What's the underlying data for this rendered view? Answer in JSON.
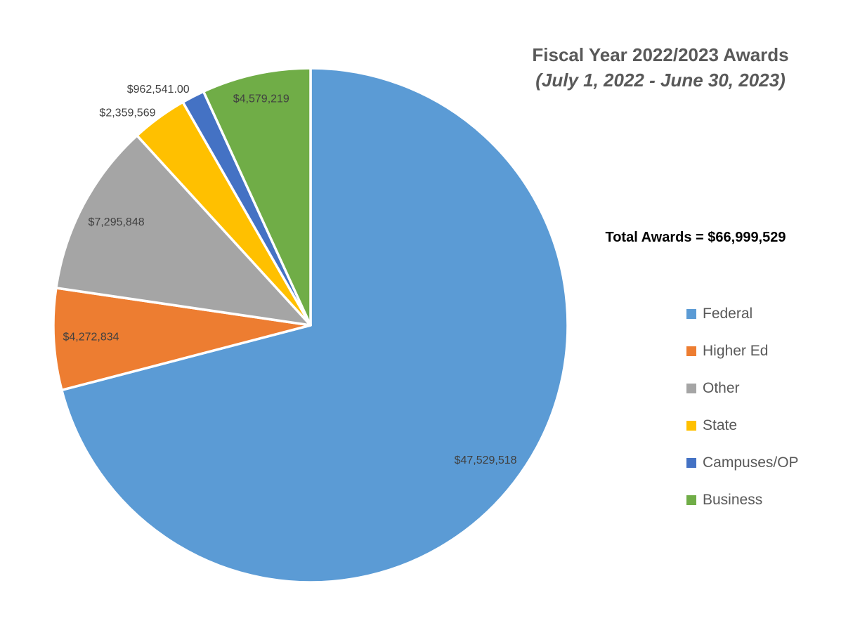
{
  "header": {
    "title": "Fiscal Year 2022/2023 Awards",
    "subtitle": "(July 1, 2022 - June 30, 2023)"
  },
  "summary": {
    "total_text": "Total Awards = $66,999,529"
  },
  "chart_data": {
    "type": "pie",
    "title": "Fiscal Year 2022/2023 Awards",
    "subtitle": "(July 1, 2022 - June 30, 2023)",
    "total_value": 66999529,
    "total_label": "Total Awards = $66,999,529",
    "start_angle_deg": 0,
    "direction": "clockwise",
    "legend_position": "right",
    "slices": [
      {
        "label": "Federal",
        "value": 47529518,
        "data_label": "$47,529,518",
        "color": "#5B9BD5",
        "label_placement": "inside"
      },
      {
        "label": "Higher Ed",
        "value": 4272834,
        "data_label": "$4,272,834",
        "color": "#ED7D31",
        "label_placement": "inside"
      },
      {
        "label": "Other",
        "value": 7295848,
        "data_label": "$7,295,848",
        "color": "#A5A5A5",
        "label_placement": "inside"
      },
      {
        "label": "State",
        "value": 2359569,
        "data_label": "$2,359,569",
        "color": "#FFC000",
        "label_placement": "outside"
      },
      {
        "label": "Campuses/OP",
        "value": 962541,
        "data_label": "$962,541.00",
        "color": "#4472C4",
        "label_placement": "outside"
      },
      {
        "label": "Business",
        "value": 4579219,
        "data_label": "$4,579,219",
        "color": "#70AD47",
        "label_placement": "inside"
      }
    ]
  },
  "colors": {
    "background": "#FFFFFF",
    "title_text": "#595959",
    "legend_text": "#595959",
    "label_text": "#404040",
    "total_text": "#000000",
    "slice_border": "#FFFFFF"
  }
}
